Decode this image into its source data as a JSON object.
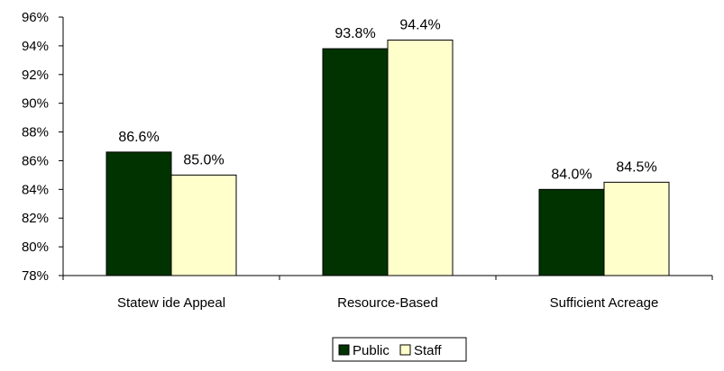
{
  "chart_data": {
    "type": "bar",
    "categories": [
      "Statew ide Appeal",
      "Resource-Based",
      "Sufficient Acreage"
    ],
    "series": [
      {
        "name": "Public",
        "values": [
          86.6,
          93.8,
          84.0
        ],
        "labels": [
          "86.6%",
          "93.8%",
          "84.0%"
        ],
        "color": "#003300"
      },
      {
        "name": "Staff",
        "values": [
          85.0,
          94.4,
          84.5
        ],
        "labels": [
          "85.0%",
          "94.4%",
          "84.5%"
        ],
        "color": "#FFFFCC"
      }
    ],
    "ylim": [
      78,
      96
    ],
    "yticks": [
      78,
      80,
      82,
      84,
      86,
      88,
      90,
      92,
      94,
      96
    ],
    "ytick_labels": [
      "78%",
      "80%",
      "82%",
      "84%",
      "86%",
      "88%",
      "90%",
      "92%",
      "94%",
      "96%"
    ],
    "grid": false,
    "legend_position": "bottom"
  }
}
